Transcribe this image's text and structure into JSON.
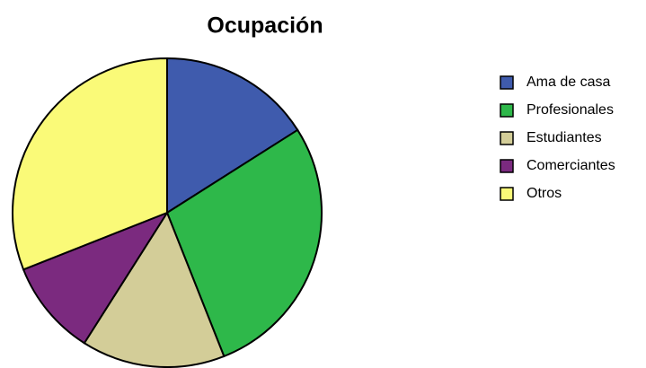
{
  "chart_data": {
    "type": "pie",
    "title": "Ocupación",
    "categories": [
      "Ama de casa",
      "Profesionales",
      "Estudiantes",
      "Comerciantes",
      "Otros"
    ],
    "values": [
      16,
      28,
      15,
      10,
      31
    ],
    "colors": [
      "#3f5bad",
      "#2eb84a",
      "#d3cd98",
      "#7b2a7f",
      "#fafa78"
    ],
    "legend": "right"
  }
}
